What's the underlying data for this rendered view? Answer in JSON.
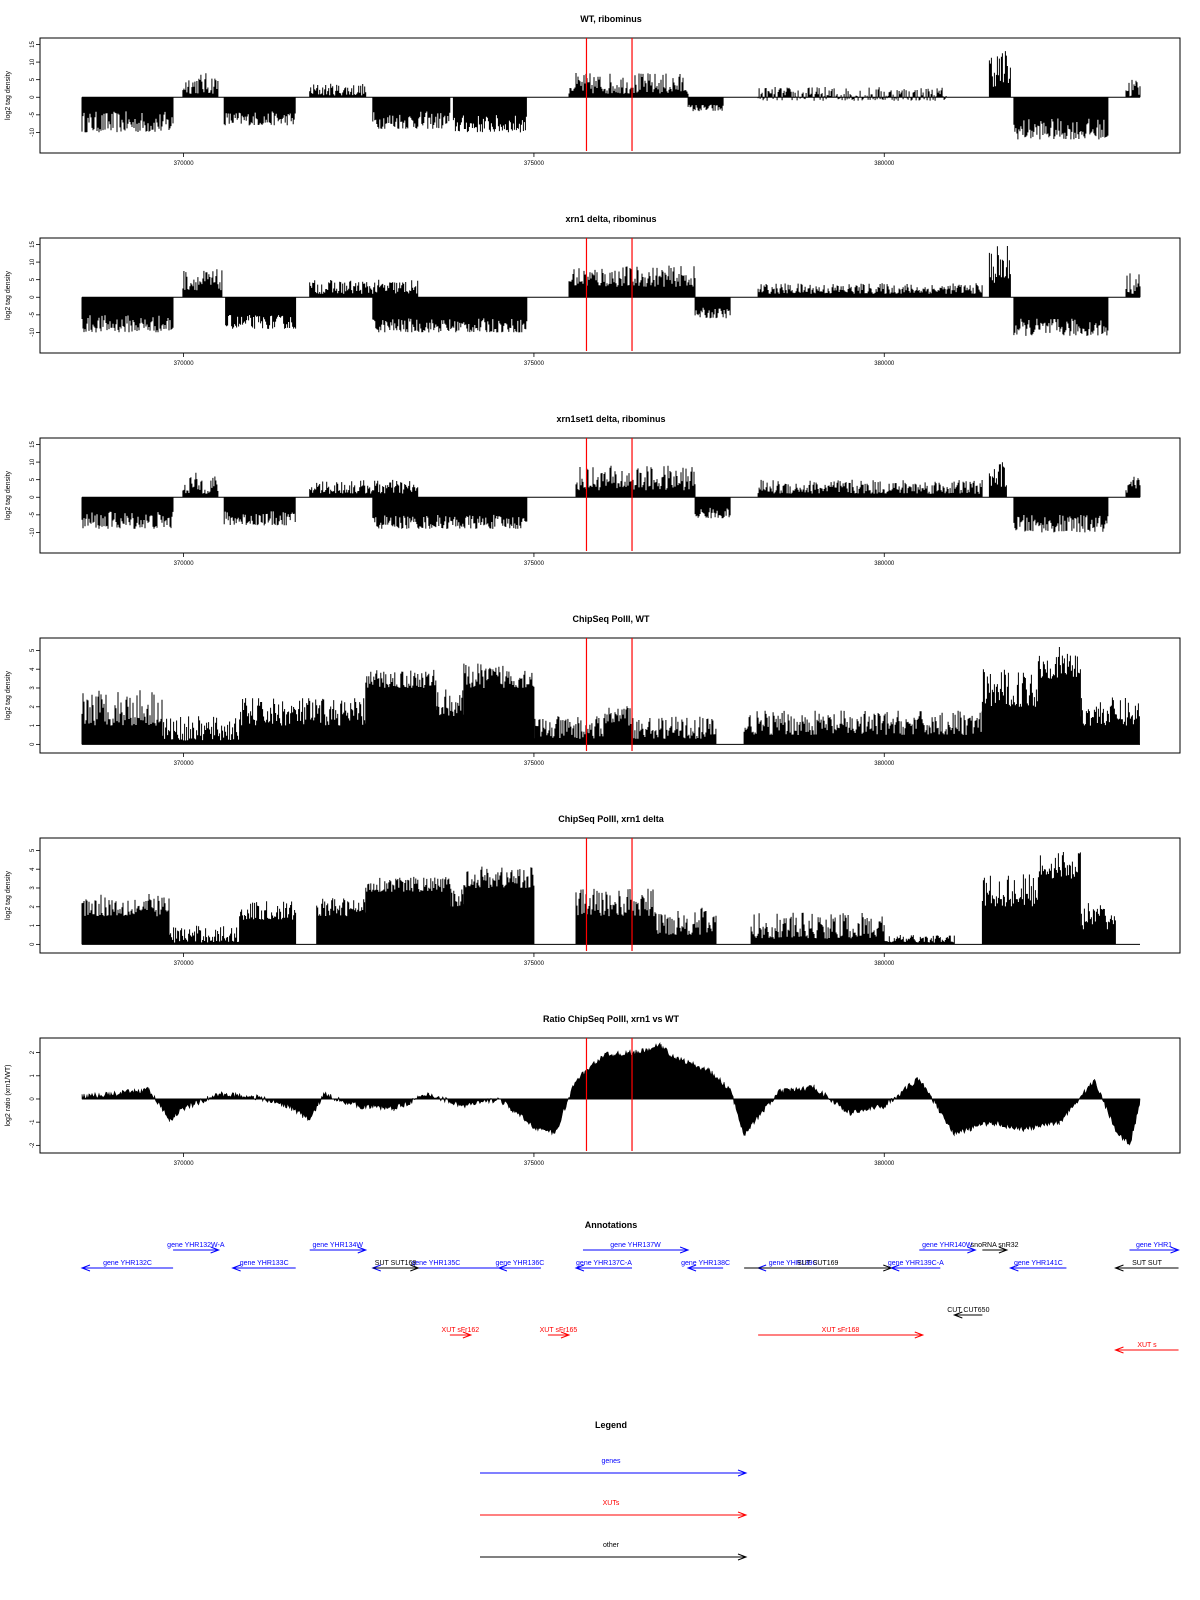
{
  "colors": {
    "genes": "#0000ff",
    "XUTs": "#ff0000",
    "other": "#000000",
    "marker": "#ff0000",
    "signal": "#000000"
  },
  "chart_data": [
    {
      "type": "area",
      "title": "WT, ribominus",
      "ylabel": "log2 tag density",
      "xlim": [
        368550,
        383650
      ],
      "ylim": [
        -15,
        16
      ],
      "xticks": [
        "370000",
        "375000",
        "380000"
      ],
      "yticks": [
        "-10",
        "-5",
        "0",
        "5",
        "10",
        "15"
      ],
      "markers_x": [
        375750,
        376400
      ],
      "segments": [
        {
          "x0": 368550,
          "x1": 369850,
          "min": -10,
          "max": -4
        },
        {
          "x0": 369990,
          "x1": 370500,
          "min": 1,
          "max": 7
        },
        {
          "x0": 370580,
          "x1": 371600,
          "min": -8,
          "max": -4
        },
        {
          "x0": 371800,
          "x1": 372600,
          "min": 0.5,
          "max": 4
        },
        {
          "x0": 372700,
          "x1": 373800,
          "min": -9,
          "max": -4
        },
        {
          "x0": 373850,
          "x1": 374900,
          "min": -10,
          "max": -5
        },
        {
          "x0": 375500,
          "x1": 377200,
          "min": 1,
          "max": 7
        },
        {
          "x0": 377200,
          "x1": 377700,
          "min": -4,
          "max": -2
        },
        {
          "x0": 378200,
          "x1": 380900,
          "min": -1,
          "max": 3
        },
        {
          "x0": 381500,
          "x1": 381800,
          "min": 3,
          "max": 14
        },
        {
          "x0": 381850,
          "x1": 383200,
          "min": -12,
          "max": -6
        },
        {
          "x0": 383450,
          "x1": 383650,
          "min": 0,
          "max": 6
        }
      ]
    },
    {
      "type": "area",
      "title": "xrn1 delta, ribominus",
      "ylabel": "log2 tag density",
      "xlim": [
        368550,
        383650
      ],
      "ylim": [
        -15,
        16
      ],
      "xticks": [
        "370000",
        "375000",
        "380000"
      ],
      "yticks": [
        "-10",
        "-5",
        "0",
        "5",
        "10",
        "15"
      ],
      "markers_x": [
        375750,
        376400
      ],
      "segments": [
        {
          "x0": 368550,
          "x1": 369850,
          "min": -10,
          "max": -5
        },
        {
          "x0": 369990,
          "x1": 370550,
          "min": 2,
          "max": 8
        },
        {
          "x0": 370600,
          "x1": 371600,
          "min": -9,
          "max": -5
        },
        {
          "x0": 371800,
          "x1": 373350,
          "min": 1,
          "max": 5
        },
        {
          "x0": 372700,
          "x1": 374900,
          "min": -10,
          "max": -6
        },
        {
          "x0": 375500,
          "x1": 377300,
          "min": 3,
          "max": 9
        },
        {
          "x0": 377300,
          "x1": 377800,
          "min": -6,
          "max": -3
        },
        {
          "x0": 378200,
          "x1": 381400,
          "min": 1,
          "max": 4
        },
        {
          "x0": 381500,
          "x1": 381800,
          "min": 4,
          "max": 15
        },
        {
          "x0": 381850,
          "x1": 383200,
          "min": -11,
          "max": -6
        },
        {
          "x0": 383450,
          "x1": 383650,
          "min": 1,
          "max": 7
        }
      ]
    },
    {
      "type": "area",
      "title": "xrn1set1 delta, ribominus",
      "ylabel": "log2 tag density",
      "xlim": [
        368550,
        383650
      ],
      "ylim": [
        -15,
        16
      ],
      "xticks": [
        "370000",
        "375000",
        "380000"
      ],
      "yticks": [
        "-10",
        "-5",
        "0",
        "5",
        "10",
        "15"
      ],
      "markers_x": [
        375750,
        376400
      ],
      "segments": [
        {
          "x0": 368550,
          "x1": 369850,
          "min": -9,
          "max": -4
        },
        {
          "x0": 369990,
          "x1": 370500,
          "min": 1,
          "max": 7
        },
        {
          "x0": 370580,
          "x1": 371600,
          "min": -8,
          "max": -4
        },
        {
          "x0": 371800,
          "x1": 373350,
          "min": 1,
          "max": 5
        },
        {
          "x0": 372700,
          "x1": 374900,
          "min": -9,
          "max": -5
        },
        {
          "x0": 375600,
          "x1": 377300,
          "min": 2,
          "max": 9
        },
        {
          "x0": 377300,
          "x1": 377800,
          "min": -6,
          "max": -3
        },
        {
          "x0": 378200,
          "x1": 381400,
          "min": 1,
          "max": 5
        },
        {
          "x0": 381500,
          "x1": 381750,
          "min": 3,
          "max": 10
        },
        {
          "x0": 381850,
          "x1": 383200,
          "min": -10,
          "max": -5
        },
        {
          "x0": 383450,
          "x1": 383650,
          "min": 0,
          "max": 6
        }
      ]
    },
    {
      "type": "bar",
      "title": "ChipSeq PolII, WT",
      "ylabel": "log2 tag density",
      "xlim": [
        368550,
        383650
      ],
      "ylim": [
        -0.3,
        5.5
      ],
      "xticks": [
        "370000",
        "375000",
        "380000"
      ],
      "yticks": [
        "0",
        "1",
        "2",
        "3",
        "4",
        "5"
      ],
      "markers_x": [
        375750,
        376400
      ],
      "segments": [
        {
          "x0": 368550,
          "x1": 369700,
          "min": 1,
          "max": 3
        },
        {
          "x0": 369700,
          "x1": 370800,
          "min": 0.2,
          "max": 1.5
        },
        {
          "x0": 370800,
          "x1": 371700,
          "min": 1,
          "max": 2.5
        },
        {
          "x0": 371700,
          "x1": 372600,
          "min": 1,
          "max": 2.5
        },
        {
          "x0": 372600,
          "x1": 373600,
          "min": 3,
          "max": 4
        },
        {
          "x0": 373600,
          "x1": 374000,
          "min": 1.5,
          "max": 3
        },
        {
          "x0": 374000,
          "x1": 375000,
          "min": 3,
          "max": 4.3
        },
        {
          "x0": 375000,
          "x1": 377600,
          "min": 0.3,
          "max": 1.5
        },
        {
          "x0": 376000,
          "x1": 376400,
          "min": 1,
          "max": 2.2
        },
        {
          "x0": 378000,
          "x1": 381400,
          "min": 0.5,
          "max": 1.8
        },
        {
          "x0": 381400,
          "x1": 382200,
          "min": 2,
          "max": 4
        },
        {
          "x0": 382200,
          "x1": 382800,
          "min": 3.5,
          "max": 5.2
        },
        {
          "x0": 382800,
          "x1": 383650,
          "min": 1,
          "max": 2.5
        }
      ]
    },
    {
      "type": "bar",
      "title": "ChipSeq PolII, xrn1 delta",
      "ylabel": "log2 tag density",
      "xlim": [
        368550,
        383650
      ],
      "ylim": [
        -0.3,
        5.5
      ],
      "xticks": [
        "370000",
        "375000",
        "380000"
      ],
      "yticks": [
        "0",
        "1",
        "2",
        "3",
        "4",
        "5"
      ],
      "markers_x": [
        375750,
        376400
      ],
      "segments": [
        {
          "x0": 368550,
          "x1": 369800,
          "min": 1.5,
          "max": 2.7
        },
        {
          "x0": 369800,
          "x1": 370800,
          "min": 0.1,
          "max": 1
        },
        {
          "x0": 370800,
          "x1": 371600,
          "min": 1.3,
          "max": 2.3
        },
        {
          "x0": 371900,
          "x1": 372600,
          "min": 1.5,
          "max": 2.5
        },
        {
          "x0": 372600,
          "x1": 373800,
          "min": 2.8,
          "max": 3.6
        },
        {
          "x0": 373800,
          "x1": 374000,
          "min": 2,
          "max": 3
        },
        {
          "x0": 374000,
          "x1": 375000,
          "min": 3,
          "max": 4.2
        },
        {
          "x0": 375600,
          "x1": 376700,
          "min": 1.5,
          "max": 3
        },
        {
          "x0": 376700,
          "x1": 377600,
          "min": 0.5,
          "max": 2
        },
        {
          "x0": 378100,
          "x1": 380000,
          "min": 0.3,
          "max": 1.7
        },
        {
          "x0": 380000,
          "x1": 381000,
          "min": 0.1,
          "max": 0.5
        },
        {
          "x0": 381400,
          "x1": 382200,
          "min": 2,
          "max": 3.8
        },
        {
          "x0": 382200,
          "x1": 382800,
          "min": 3.5,
          "max": 5
        },
        {
          "x0": 382800,
          "x1": 383300,
          "min": 0.8,
          "max": 2.3
        }
      ]
    },
    {
      "type": "area",
      "title": "Ratio ChipSeq PolII, xrn1 vs WT",
      "ylabel": "log2 ratio (xrn1/WT)",
      "xlim": [
        368550,
        383650
      ],
      "ylim": [
        -2.2,
        2.5
      ],
      "xticks": [
        "370000",
        "375000",
        "380000"
      ],
      "yticks": [
        "-2",
        "-1",
        "0",
        "1",
        "2"
      ],
      "markers_x": [
        375750,
        376400
      ],
      "x": [
        368550,
        369000,
        369500,
        369800,
        370000,
        370500,
        371000,
        371500,
        371800,
        372000,
        372500,
        373000,
        373500,
        374000,
        374500,
        375000,
        375300,
        375600,
        376000,
        376500,
        376800,
        377000,
        377500,
        377800,
        378000,
        378500,
        379000,
        379500,
        380000,
        380500,
        381000,
        381500,
        382000,
        382500,
        383000,
        383300,
        383500,
        383650
      ],
      "y": [
        0.1,
        0.2,
        0.4,
        -0.9,
        -0.4,
        0.2,
        0.1,
        -0.3,
        -0.9,
        0.2,
        -0.3,
        -0.4,
        0.2,
        -0.3,
        0.0,
        -1.2,
        -1.5,
        0.8,
        1.9,
        2.0,
        2.3,
        1.8,
        1.2,
        0.4,
        -1.5,
        0.3,
        0.5,
        -0.6,
        -0.3,
        0.9,
        -1.5,
        -1.0,
        -1.3,
        -1.0,
        0.8,
        -1.3,
        -2.0,
        -0.2
      ]
    }
  ],
  "annotations": {
    "title": "Annotations",
    "genes": [
      {
        "label": "gene YHR132C",
        "x0": 368550,
        "x1": 369850,
        "dir": "left",
        "row": 1
      },
      {
        "label": "gene YHR132W-A",
        "x0": 369850,
        "x1": 370500,
        "dir": "right",
        "row": 0
      },
      {
        "label": "gene YHR133C",
        "x0": 370700,
        "x1": 371600,
        "dir": "left",
        "row": 1
      },
      {
        "label": "gene YHR134W",
        "x0": 371800,
        "x1": 372600,
        "dir": "right",
        "row": 0
      },
      {
        "label": "gene YHR135C",
        "x0": 372700,
        "x1": 374500,
        "dir": "left",
        "row": 1
      },
      {
        "label": "gene YHR136C",
        "x0": 374500,
        "x1": 375100,
        "dir": "left",
        "row": 1
      },
      {
        "label": "gene YHR137W",
        "x0": 375700,
        "x1": 377200,
        "dir": "right",
        "row": 0
      },
      {
        "label": "gene YHR137C-A",
        "x0": 375600,
        "x1": 376400,
        "dir": "left",
        "row": 1
      },
      {
        "label": "gene YHR138C",
        "x0": 377200,
        "x1": 377700,
        "dir": "left",
        "row": 1
      },
      {
        "label": "gene YHR139C",
        "x0": 378200,
        "x1": 379200,
        "dir": "left",
        "row": 1
      },
      {
        "label": "gene YHR139C-A",
        "x0": 380100,
        "x1": 380800,
        "dir": "left",
        "row": 1
      },
      {
        "label": "gene YHR140W",
        "x0": 380500,
        "x1": 381300,
        "dir": "right",
        "row": 0
      },
      {
        "label": "gene YHR141C",
        "x0": 381800,
        "x1": 382600,
        "dir": "left",
        "row": 1
      },
      {
        "label": "gene YHR1",
        "x0": 383500,
        "x1": 384200,
        "dir": "right",
        "row": 0
      }
    ],
    "other": [
      {
        "label": "snoRNA snR32",
        "x0": 381400,
        "x1": 381750,
        "dir": "right",
        "row": 0
      },
      {
        "label": "SUT SUT168",
        "x0": 372700,
        "x1": 373350,
        "dir": "right",
        "row": 1
      },
      {
        "label": "SUT SUT169",
        "x0": 378000,
        "x1": 380100,
        "dir": "right",
        "row": 1
      },
      {
        "label": "SUT SUT",
        "x0": 383300,
        "x1": 384200,
        "dir": "left",
        "row": 1
      },
      {
        "label": "CUT CUT650",
        "x0": 381000,
        "x1": 381400,
        "dir": "left",
        "row": 2
      }
    ],
    "xuts": [
      {
        "label": "XUT sFr162",
        "x0": 373800,
        "x1": 374100,
        "dir": "right",
        "row": 3
      },
      {
        "label": "XUT sFr165",
        "x0": 375200,
        "x1": 375500,
        "dir": "right",
        "row": 3
      },
      {
        "label": "XUT sFr168",
        "x0": 378200,
        "x1": 380550,
        "dir": "right",
        "row": 3
      },
      {
        "label": "XUT s",
        "x0": 383300,
        "x1": 384200,
        "dir": "left",
        "row": 4
      }
    ]
  },
  "legend": {
    "title": "Legend",
    "items": [
      {
        "label": "genes",
        "color": "#0000ff"
      },
      {
        "label": "XUTs",
        "color": "#ff0000"
      },
      {
        "label": "other",
        "color": "#000000"
      }
    ]
  }
}
